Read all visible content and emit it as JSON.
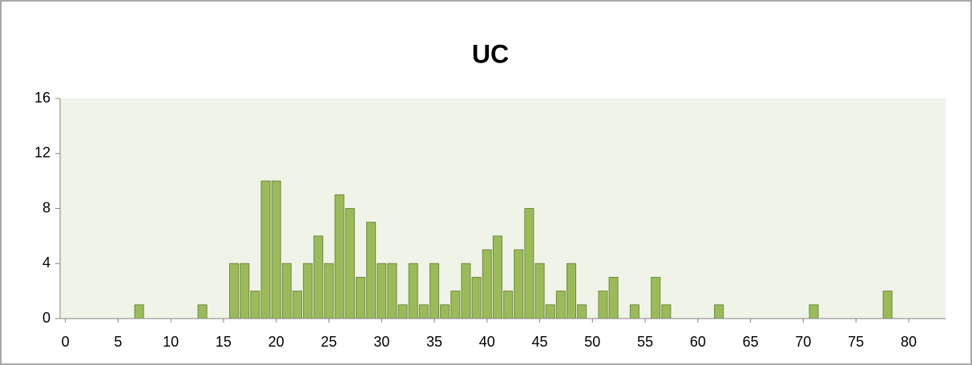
{
  "chart_data": {
    "type": "bar",
    "title": "UC",
    "x": [
      7,
      13,
      16,
      17,
      18,
      19,
      20,
      21,
      22,
      23,
      24,
      25,
      26,
      27,
      28,
      29,
      30,
      31,
      32,
      33,
      34,
      35,
      36,
      37,
      38,
      39,
      40,
      41,
      42,
      43,
      44,
      45,
      46,
      47,
      48,
      49,
      51,
      52,
      54,
      56,
      57,
      62,
      71,
      78
    ],
    "values": [
      1,
      1,
      4,
      4,
      2,
      10,
      10,
      4,
      2,
      4,
      6,
      4,
      9,
      8,
      3,
      7,
      4,
      4,
      1,
      4,
      1,
      4,
      1,
      2,
      4,
      3,
      5,
      6,
      2,
      5,
      8,
      4,
      1,
      2,
      4,
      1,
      2,
      3,
      1,
      3,
      1,
      1,
      1,
      2
    ],
    "color": "#9bbb59",
    "xlim": [
      -0.5,
      83.5
    ],
    "xticks": [
      0,
      5,
      10,
      15,
      20,
      25,
      30,
      35,
      40,
      45,
      50,
      55,
      60,
      65,
      70,
      75,
      80
    ],
    "ylim": [
      0,
      16
    ],
    "yticks": [
      0,
      4,
      8,
      12,
      16
    ],
    "grid": false
  }
}
